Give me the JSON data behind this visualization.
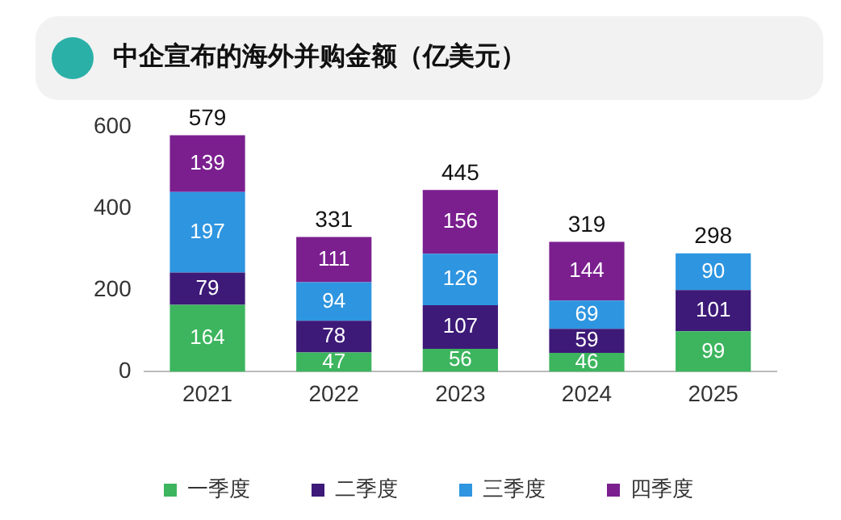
{
  "chart_data": {
    "type": "bar",
    "title": "中企宣布的海外并购金额（亿美元）",
    "stacked": true,
    "categories": [
      "2021",
      "2022",
      "2023",
      "2024",
      "2025"
    ],
    "series": [
      {
        "name": "一季度",
        "color": "#3cb55e",
        "values": [
          164,
          47,
          56,
          46,
          99
        ]
      },
      {
        "name": "二季度",
        "color": "#3d1a78",
        "values": [
          79,
          78,
          107,
          59,
          101
        ]
      },
      {
        "name": "三季度",
        "color": "#2e95e0",
        "values": [
          197,
          94,
          126,
          69,
          90
        ]
      },
      {
        "name": "四季度",
        "color": "#7b1f8f",
        "values": [
          139,
          111,
          156,
          144,
          null
        ]
      }
    ],
    "annotations": [
      {
        "text": "579",
        "x": "2021",
        "y": 579
      },
      {
        "text": "331",
        "x": "2022",
        "y": 330
      },
      {
        "text": "445",
        "x": "2023",
        "y": 445
      },
      {
        "text": "319",
        "x": "2024",
        "y": 318
      },
      {
        "text": "298",
        "x": "2025",
        "y": 290
      }
    ],
    "ylim": [
      0,
      600
    ],
    "yticks": [
      0,
      200,
      400,
      600
    ],
    "grid": false,
    "legend": "bottom",
    "data_labels": true
  }
}
